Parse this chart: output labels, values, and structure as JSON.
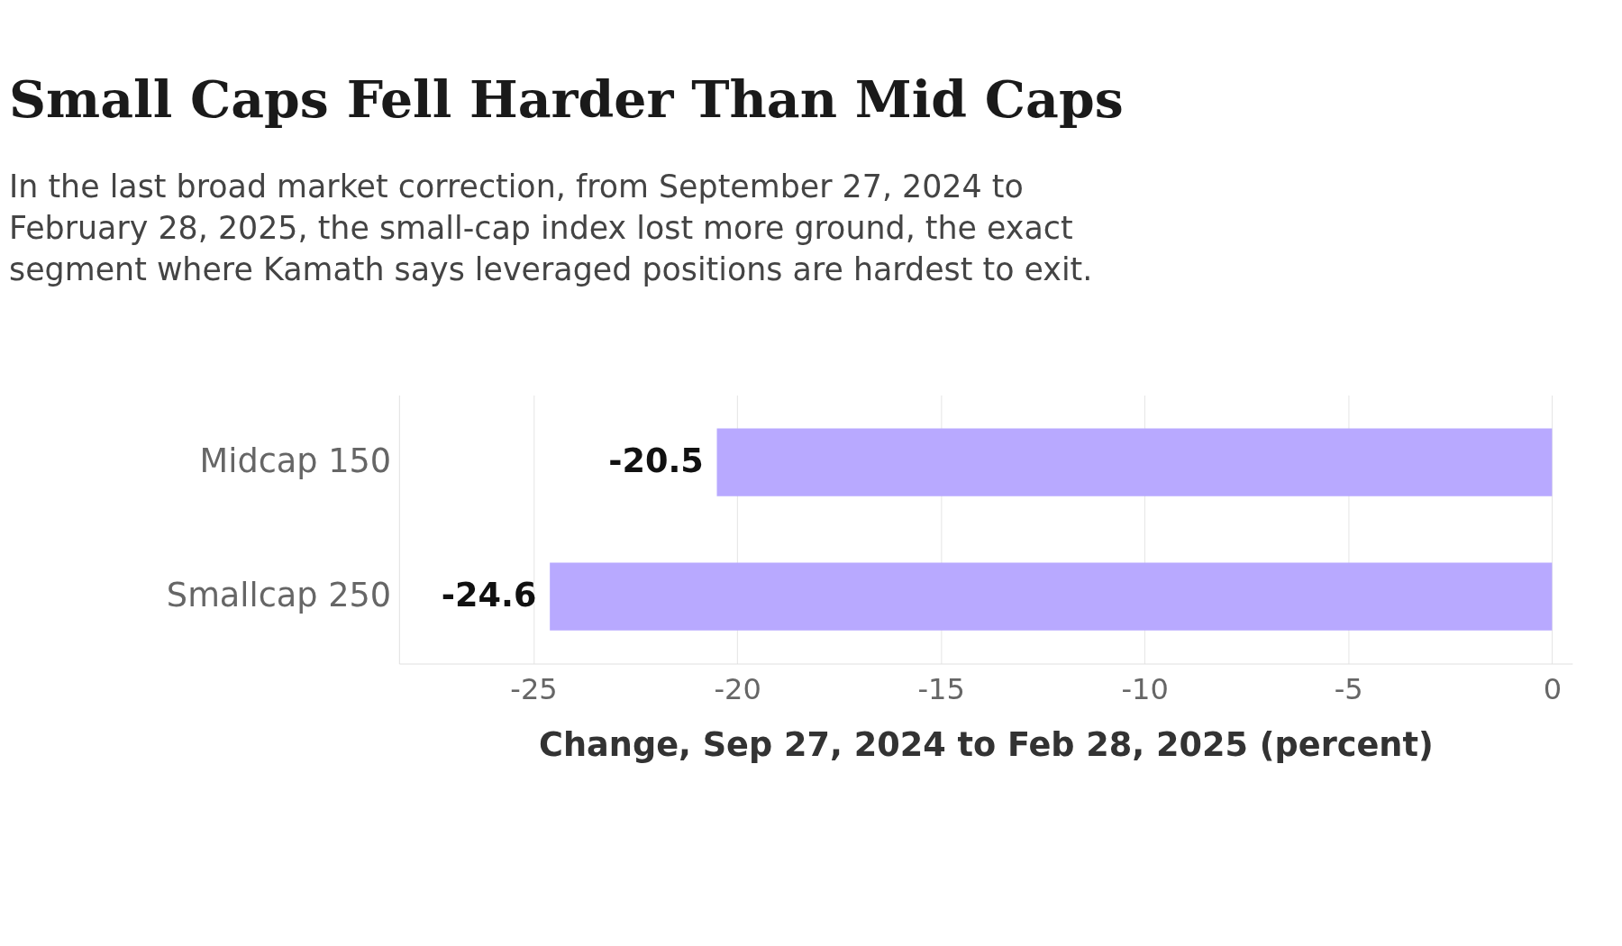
{
  "chart_data": {
    "type": "bar",
    "orientation": "horizontal",
    "title": "Small Caps Fell Harder Than Mid Caps",
    "subtitle": "In the last broad market correction, from September 27, 2024 to\nFebruary 28, 2025, the small-cap index lost more ground, the exact\nsegment where Kamath says leveraged positions are hardest to exit.",
    "categories": [
      "Midcap 150",
      "Smallcap 250"
    ],
    "values": [
      -20.5,
      -24.6
    ],
    "color": "#b8a9ff",
    "xlabel": "Change, Sep 27, 2024 to Feb 28, 2025 (percent)",
    "xlim": [
      -28.3,
      0.5
    ],
    "xticks": [
      -25,
      -20,
      -15,
      -10,
      -5,
      0
    ],
    "grid": "x",
    "data_labels": true
  }
}
